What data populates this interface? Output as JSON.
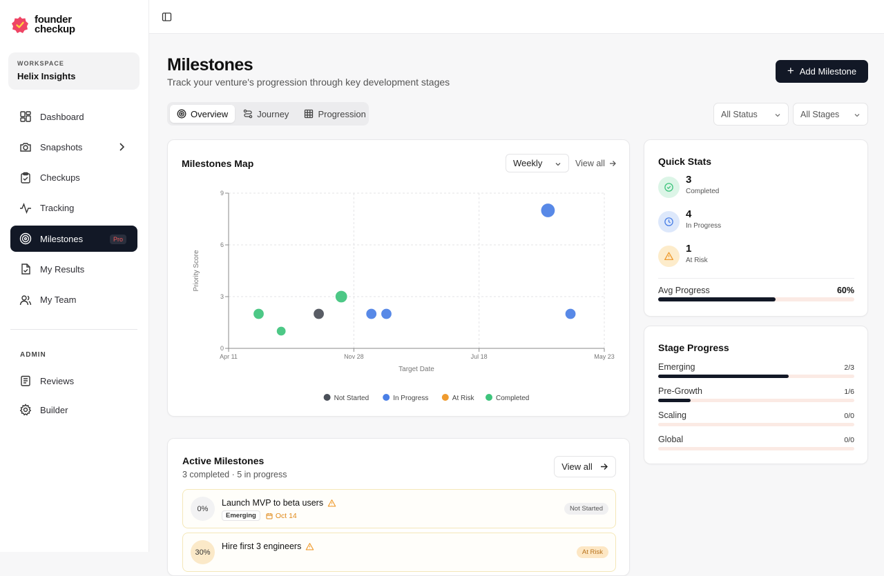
{
  "brand": {
    "line1": "founder",
    "line2": "checkup",
    "accent": "#ef4565"
  },
  "workspace": {
    "label": "WORKSPACE",
    "name": "Helix Insights"
  },
  "nav": [
    {
      "label": "Dashboard",
      "icon": "dashboard-icon"
    },
    {
      "label": "Snapshots",
      "icon": "camera-icon"
    },
    {
      "label": "Checkups",
      "icon": "clipboard-icon"
    },
    {
      "label": "Tracking",
      "icon": "activity-icon"
    },
    {
      "label": "Milestones",
      "icon": "target-icon",
      "badge": "Pro"
    },
    {
      "label": "My Results",
      "icon": "file-check-icon"
    },
    {
      "label": "My Team",
      "icon": "users-icon"
    }
  ],
  "admin": {
    "label": "ADMIN",
    "items": [
      {
        "label": "Reviews",
        "icon": "list-icon"
      },
      {
        "label": "Builder",
        "icon": "gear-icon"
      }
    ]
  },
  "header": {
    "title": "Milestones",
    "subtitle": "Track your venture's progression through key development stages",
    "add_button": "Add Milestone"
  },
  "tabs": [
    {
      "label": "Overview"
    },
    {
      "label": "Journey"
    },
    {
      "label": "Progression"
    }
  ],
  "filters": {
    "status": "All Status",
    "stages": "All Stages"
  },
  "map": {
    "title": "Milestones Map",
    "period": "Weekly",
    "view_all": "View all"
  },
  "chart_data": {
    "type": "scatter",
    "title": "Milestones Map",
    "xlabel": "Target Date",
    "ylabel": "Priority Score",
    "x_ticks": [
      "Apr 11",
      "Nov 28",
      "Jul 18",
      "May 23"
    ],
    "y_ticks": [
      0,
      3,
      6,
      9
    ],
    "ylim": [
      0,
      9
    ],
    "legend": [
      {
        "name": "Not Started",
        "color": "#4b5059"
      },
      {
        "name": "In Progress",
        "color": "#4a7fe6"
      },
      {
        "name": "At Risk",
        "color": "#ef9b2f"
      },
      {
        "name": "Completed",
        "color": "#3ec47c"
      }
    ],
    "points": [
      {
        "x": 0.08,
        "y": 2,
        "status": "Completed",
        "r": 8
      },
      {
        "x": 0.14,
        "y": 1,
        "status": "Completed",
        "r": 7
      },
      {
        "x": 0.24,
        "y": 2,
        "status": "Not Started",
        "r": 8
      },
      {
        "x": 0.3,
        "y": 3,
        "status": "Completed",
        "r": 9
      },
      {
        "x": 0.38,
        "y": 2,
        "status": "In Progress",
        "r": 8
      },
      {
        "x": 0.42,
        "y": 2,
        "status": "In Progress",
        "r": 8
      },
      {
        "x": 0.85,
        "y": 8,
        "status": "In Progress",
        "r": 10.5
      },
      {
        "x": 0.91,
        "y": 2,
        "status": "In Progress",
        "r": 8
      }
    ]
  },
  "quick_stats": {
    "title": "Quick Stats",
    "items": [
      {
        "value": "3",
        "label": "Completed",
        "color": "#3ec47c"
      },
      {
        "value": "4",
        "label": "In Progress",
        "color": "#4a7fe6"
      },
      {
        "value": "1",
        "label": "At Risk",
        "color": "#ef9b2f"
      }
    ],
    "avg_label": "Avg Progress",
    "avg_value": "60%",
    "avg_fraction": 0.6
  },
  "stage_progress": {
    "title": "Stage Progress",
    "items": [
      {
        "label": "Emerging",
        "value": "2/3",
        "fraction": 0.667
      },
      {
        "label": "Pre-Growth",
        "value": "1/6",
        "fraction": 0.167
      },
      {
        "label": "Scaling",
        "value": "0/0",
        "fraction": 0
      },
      {
        "label": "Global",
        "value": "0/0",
        "fraction": 0
      }
    ]
  },
  "active": {
    "title": "Active Milestones",
    "subtitle": "3 completed · 5 in progress",
    "view_all": "View all",
    "items": [
      {
        "progress": "0%",
        "title": "Launch MVP to beta users",
        "stage": "Emerging",
        "due": "Oct 14",
        "status": "Not Started"
      },
      {
        "progress": "30%",
        "title": "Hire first 3 engineers",
        "stage": "",
        "due": "",
        "status": "At Risk"
      }
    ]
  }
}
